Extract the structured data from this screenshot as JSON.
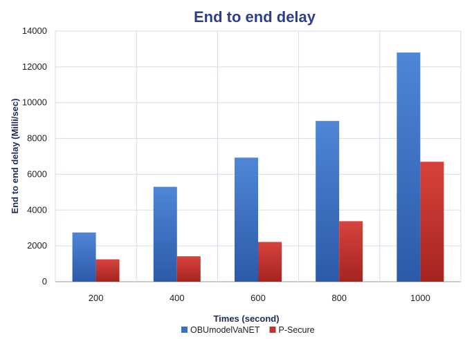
{
  "chart_data": {
    "type": "bar",
    "title": "End to end delay",
    "xlabel": "Times (second)",
    "ylabel": "End to end delay (Milli/sec)",
    "categories": [
      "200",
      "400",
      "600",
      "800",
      "1000"
    ],
    "series": [
      {
        "name": "OBUmodelVaNET",
        "values": [
          2750,
          5300,
          6930,
          8980,
          12800
        ],
        "color": "#3a6fc4"
      },
      {
        "name": "P-Secure",
        "values": [
          1250,
          1420,
          2220,
          3380,
          6700
        ],
        "color": "#c8302c"
      }
    ],
    "ylim": [
      0,
      14000
    ],
    "yticks": [
      "0",
      "2000",
      "4000",
      "6000",
      "8000",
      "10000",
      "12000",
      "14000"
    ],
    "grid": true,
    "legend_position": "bottom"
  }
}
